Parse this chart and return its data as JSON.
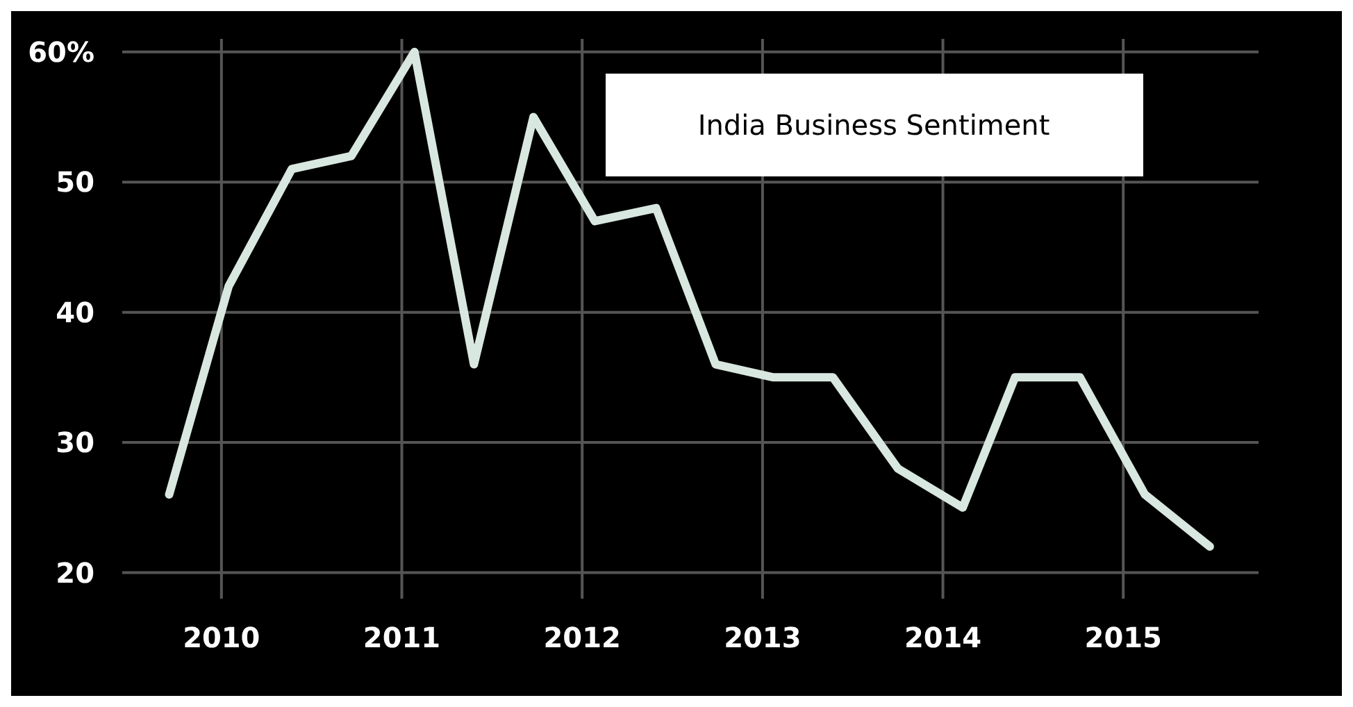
{
  "chart_data": {
    "type": "line",
    "title": "India Business Sentiment",
    "x": [
      2009.71,
      2010.04,
      2010.39,
      2010.72,
      2011.07,
      2011.4,
      2011.73,
      2012.07,
      2012.41,
      2012.74,
      2013.06,
      2013.39,
      2013.75,
      2014.11,
      2014.4,
      2014.76,
      2015.12,
      2015.48
    ],
    "series": [
      {
        "color": "#d8e8e0",
        "values": [
          26,
          42,
          51,
          52,
          60,
          36,
          55,
          47,
          48,
          36,
          35,
          35,
          28,
          25,
          35,
          35,
          26,
          22
        ]
      }
    ],
    "xlim": [
      2009.45,
      2015.75
    ],
    "xticks": [
      2010,
      2011,
      2012,
      2013,
      2014,
      2015
    ],
    "ylim": [
      18,
      61
    ],
    "yticks": [
      20,
      30,
      40,
      50,
      {
        "value": 60,
        "label": "60%"
      }
    ],
    "grid": true,
    "marker": "none",
    "line_style": "solid"
  }
}
